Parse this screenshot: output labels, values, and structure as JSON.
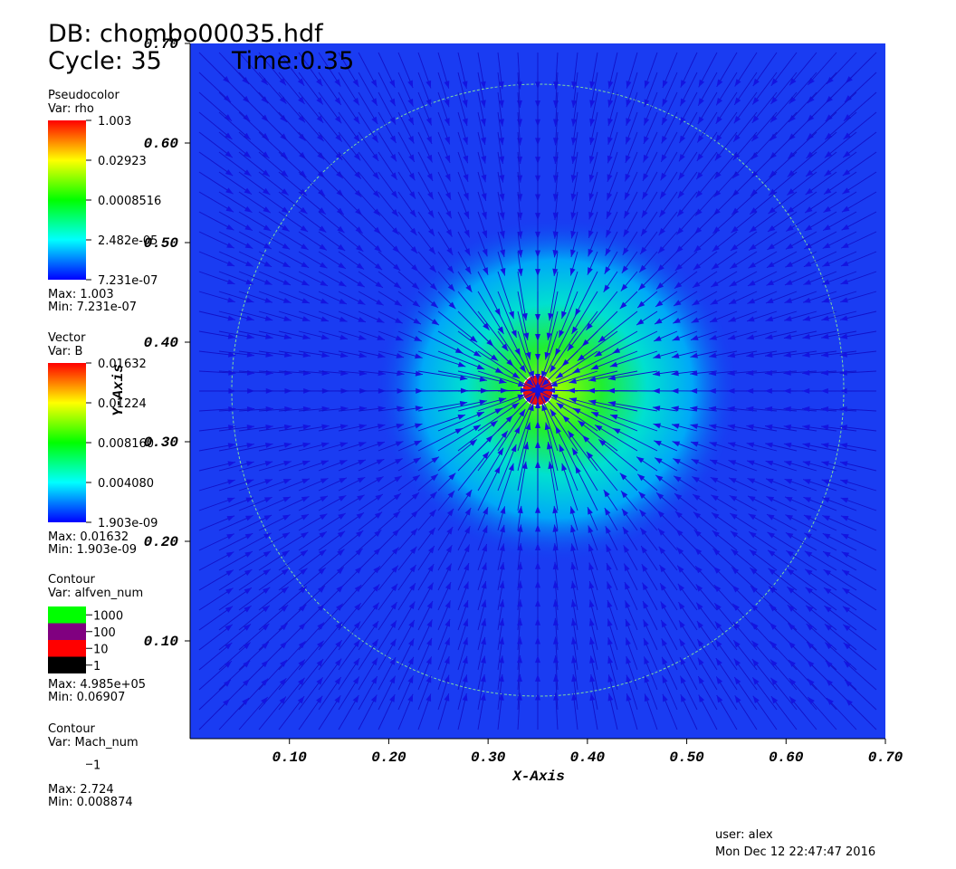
{
  "header": {
    "database": "DB: chombo00035.hdf",
    "cycle": "Cycle: 35",
    "time": "Time:0.35"
  },
  "legends": [
    {
      "plot": "Pseudocolor",
      "var": "Var: rho",
      "labels": [
        "1.003",
        "0.02923",
        "0.0008516",
        "2.482e-05",
        "7.231e-07"
      ],
      "max": "Max:  1.003",
      "min": "Min:  7.231e-07"
    },
    {
      "plot": "Vector",
      "var": "Var: B",
      "labels": [
        "0.01632",
        "0.01224",
        "0.008160",
        "0.004080",
        "1.903e-09"
      ],
      "max": "Max:  0.01632",
      "min": "Min:  1.903e-09"
    },
    {
      "plot": "Contour",
      "var": "Var: alfven_num",
      "labels": [
        "1000",
        "100",
        "10",
        "1"
      ],
      "colors": [
        "#00ff00",
        "#800080",
        "#ff0000",
        "#000000"
      ],
      "max": "Max:  4.985e+05",
      "min": "Min:  0.06907"
    },
    {
      "plot": "Contour",
      "var": "Var: Mach_num",
      "labels": [
        "1"
      ],
      "colors": [
        "#ffffff"
      ],
      "max": "Max:  2.724",
      "min": "Min:  0.008874"
    }
  ],
  "chart_data": {
    "type": "field",
    "xlabel": "X-Axis",
    "ylabel": "Y-Axis",
    "xlim": [
      0,
      0.7
    ],
    "ylim": [
      0,
      0.7
    ],
    "xticks": [
      {
        "value": 0.1,
        "label": "0.10"
      },
      {
        "value": 0.2,
        "label": "0.20"
      },
      {
        "value": 0.3,
        "label": "0.30"
      },
      {
        "value": 0.4,
        "label": "0.40"
      },
      {
        "value": 0.5,
        "label": "0.50"
      },
      {
        "value": 0.6,
        "label": "0.60"
      },
      {
        "value": 0.7,
        "label": "0.70"
      }
    ],
    "yticks": [
      {
        "value": 0.1,
        "label": "0.10"
      },
      {
        "value": 0.2,
        "label": "0.20"
      },
      {
        "value": 0.3,
        "label": "0.30"
      },
      {
        "value": 0.4,
        "label": "0.40"
      },
      {
        "value": 0.5,
        "label": "0.50"
      },
      {
        "value": 0.6,
        "label": "0.60"
      },
      {
        "value": 0.7,
        "label": "0.70"
      }
    ]
  },
  "footer": {
    "user": "user: alex",
    "date": "Mon Dec 12 22:47:47 2016"
  }
}
